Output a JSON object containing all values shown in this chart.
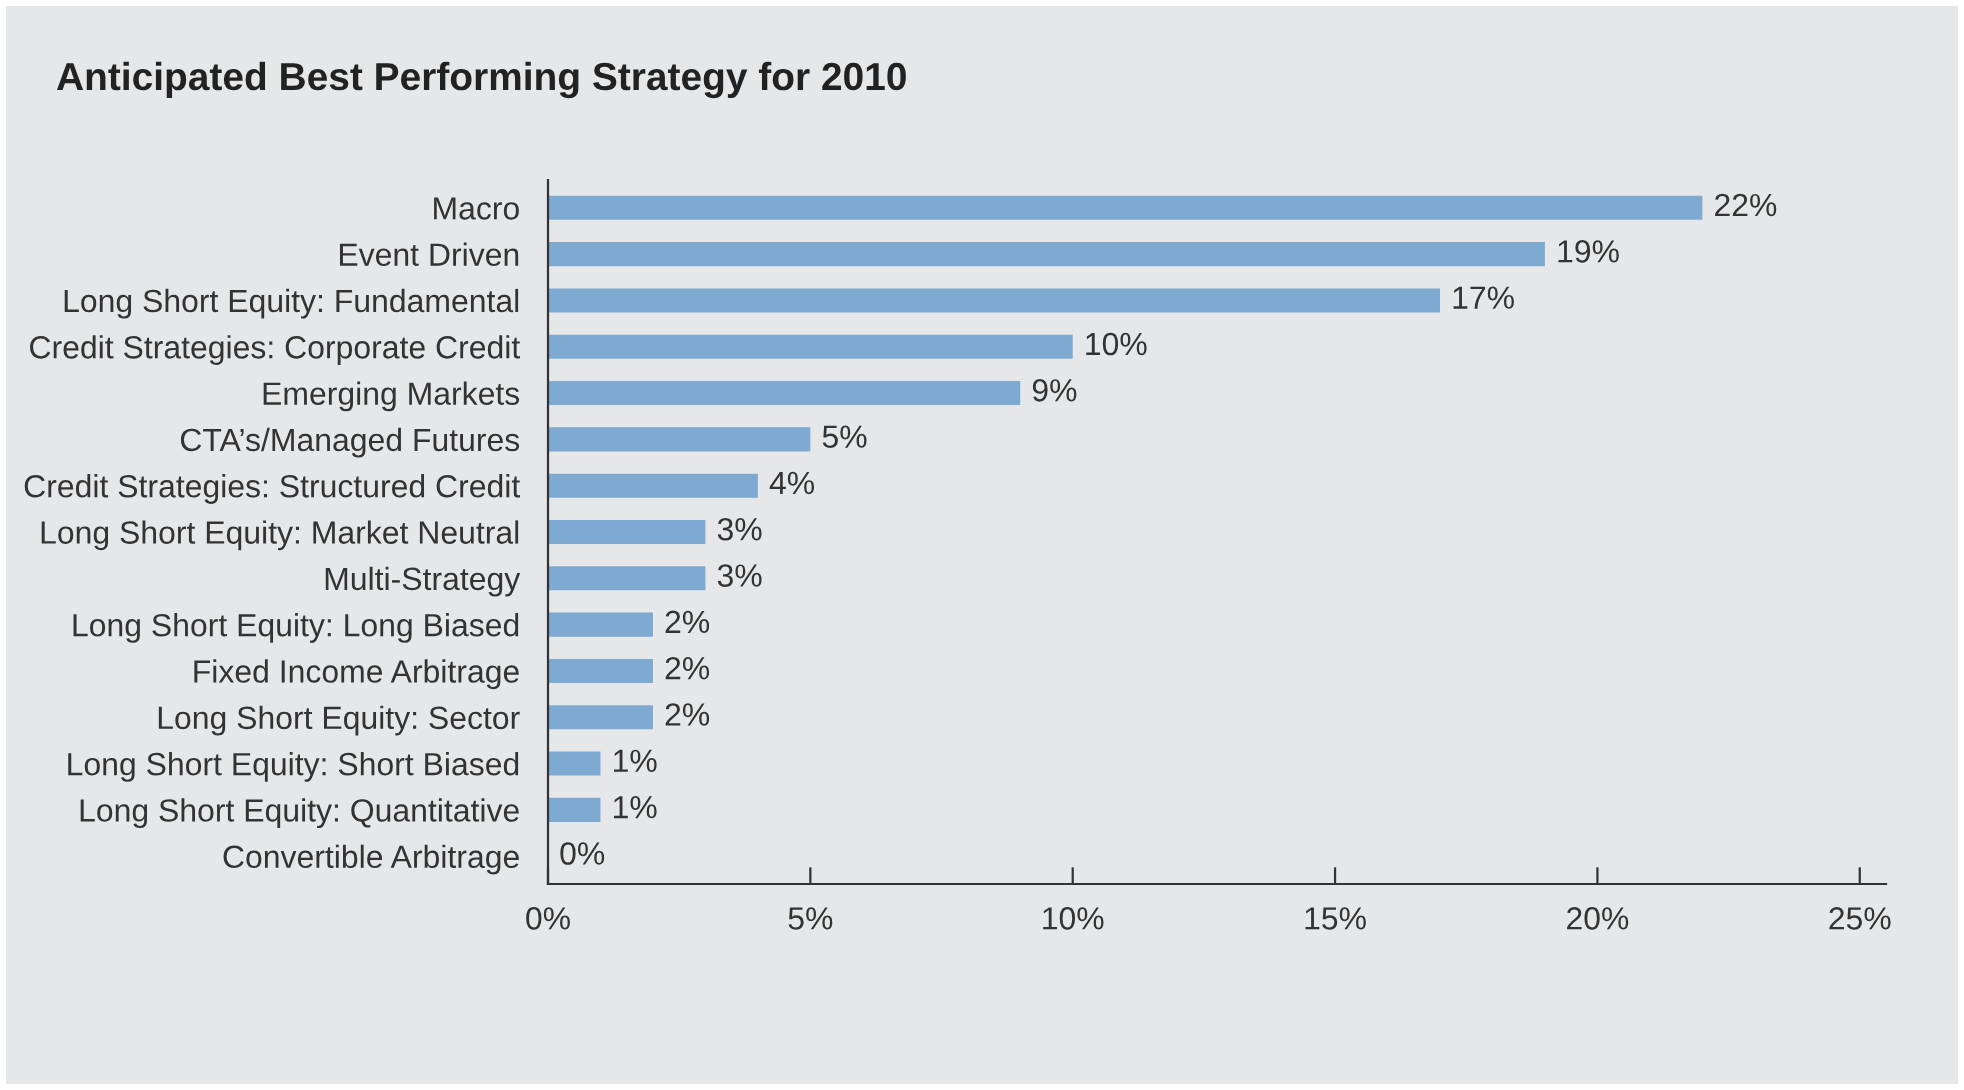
{
  "chart_data": {
    "type": "bar",
    "orientation": "horizontal",
    "title": "Anticipated Best Performing Strategy for 2010",
    "categories": [
      "Macro",
      "Event Driven",
      "Long Short Equity: Fundamental",
      "Credit Strategies: Corporate Credit",
      "Emerging Markets",
      "CTA’s/Managed Futures",
      "Credit Strategies: Structured Credit",
      "Long Short Equity: Market Neutral",
      "Multi-Strategy",
      "Long Short Equity: Long Biased",
      "Fixed Income Arbitrage",
      "Long Short Equity: Sector",
      "Long Short Equity: Short Biased",
      "Long Short Equity: Quantitative",
      "Convertible Arbitrage"
    ],
    "values": [
      22,
      19,
      17,
      10,
      9,
      5,
      4,
      3,
      3,
      2,
      2,
      2,
      1,
      1,
      0
    ],
    "value_labels": [
      "22%",
      "19%",
      "17%",
      "10%",
      "9%",
      "5%",
      "4%",
      "3%",
      "3%",
      "2%",
      "2%",
      "2%",
      "1%",
      "1%",
      "0%"
    ],
    "color": "#7eaad2",
    "xlim": [
      0,
      25.5
    ],
    "xticks": [
      {
        "value": 0,
        "label": "0%"
      },
      {
        "value": 5,
        "label": "5%"
      },
      {
        "value": 10,
        "label": "10%"
      },
      {
        "value": 15,
        "label": "15%"
      },
      {
        "value": 20,
        "label": "20%"
      },
      {
        "value": 25,
        "label": "25%"
      }
    ],
    "grid": false,
    "legend": false
  }
}
